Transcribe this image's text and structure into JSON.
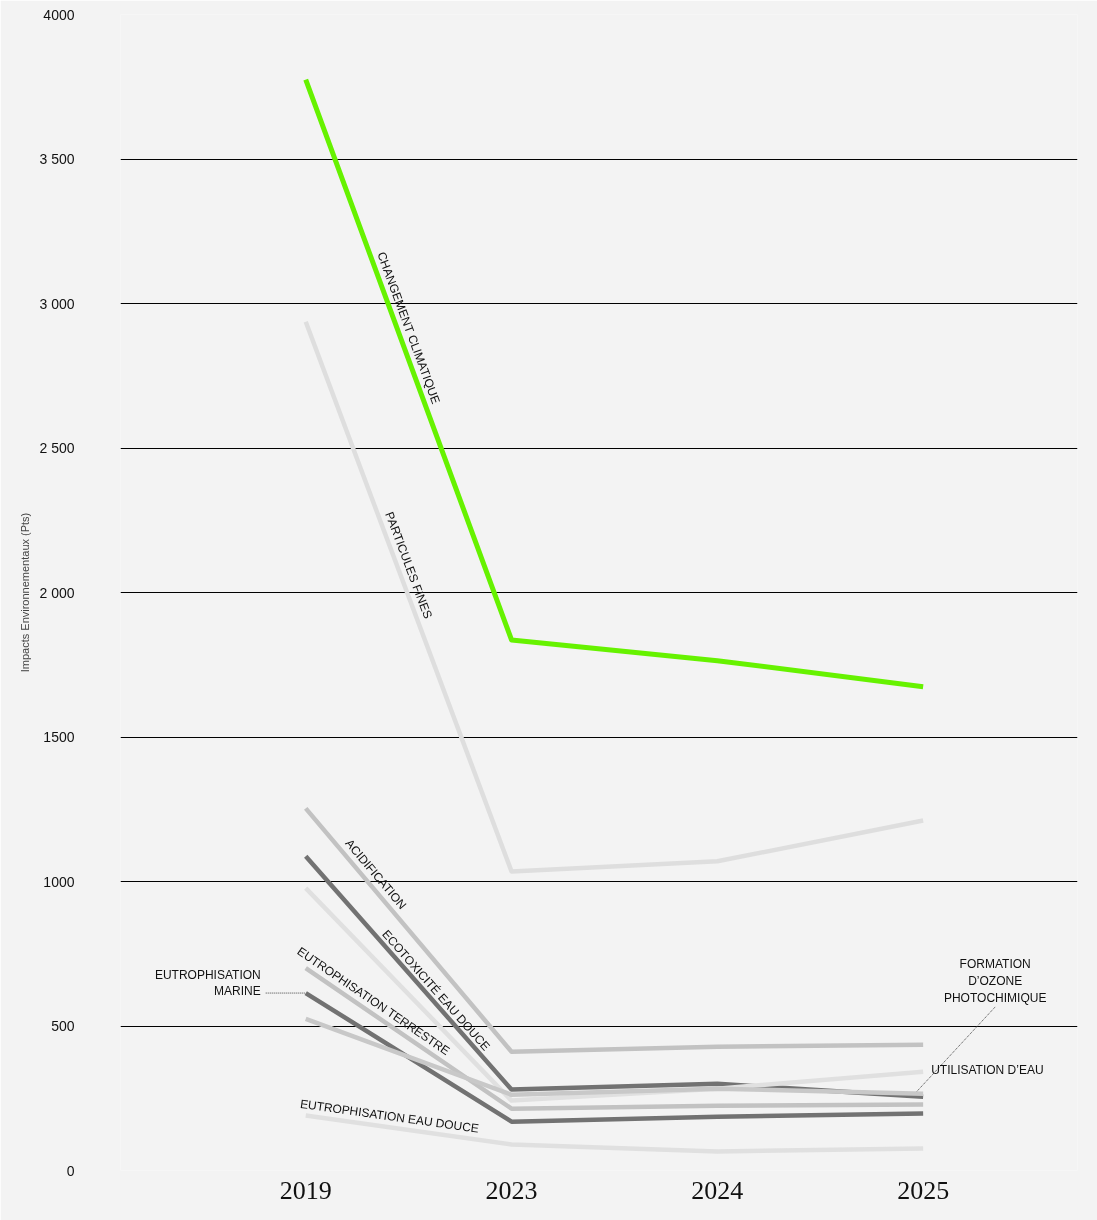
{
  "chart_data": {
    "type": "line",
    "ylabel": "Impacts Environnementaux (Pts)",
    "categories": [
      "2019",
      "2023",
      "2024",
      "2025"
    ],
    "ylim": [
      0,
      4000
    ],
    "yticks": [
      0,
      500,
      1000,
      {
        "value": 1500,
        "label": "1500"
      },
      {
        "value": 2000,
        "label": "2 000"
      },
      {
        "value": 2500,
        "label": "2 500"
      },
      {
        "value": 3000,
        "label": "3 000"
      },
      {
        "value": 3500,
        "label": "3 500"
      },
      4000
    ],
    "grid": "y",
    "legend": false,
    "marker": "none",
    "line_style": "solid",
    "series": [
      {
        "name": "CHANGEMENT CLIMATIQUE",
        "color": "#66f200",
        "values": [
          3775,
          1836,
          1764,
          1674
        ]
      },
      {
        "name": "PARTICULES FINES",
        "color": "#dedede",
        "values": [
          2937,
          1035,
          1070,
          1211
        ]
      },
      {
        "name": "ACIDIFICATION",
        "color": "#c2c2c2",
        "values": [
          1253,
          411,
          428,
          435
        ]
      },
      {
        "name": "ECOTOXICITÉ EAU DOUCE",
        "color": "#727272",
        "values": [
          1087,
          280,
          300,
          255
        ]
      },
      {
        "name": "UTILISATION D’EAU",
        "color": "#e0e0e0",
        "values": [
          977,
          242,
          283,
          342
        ]
      },
      {
        "name": "EUTROPHISATION TERRESTRE",
        "color": "#c2c2c2",
        "values": [
          700,
          214,
          224,
          228
        ]
      },
      {
        "name": "EUTROPHISATION MARINE",
        "color": "#727272",
        "values": [
          614,
          169,
          186,
          197
        ]
      },
      {
        "name": "FORMATION D’OZONE PHOTOCHIMIQUE",
        "color": "#c8c8c8",
        "values": [
          525,
          262,
          283,
          266
        ]
      },
      {
        "name": "EUTROPHISATION EAU DOUCE",
        "color": "#e0e0e0",
        "values": [
          190,
          90,
          66,
          76
        ]
      }
    ]
  }
}
